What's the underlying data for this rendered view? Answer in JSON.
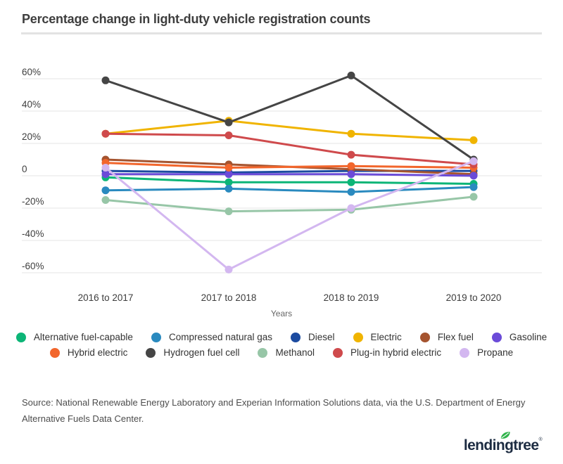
{
  "header": {
    "title": "Percentage change in light-duty vehicle registration counts"
  },
  "chart_data": {
    "type": "line",
    "categories": [
      "2016 to 2017",
      "2017 to 2018",
      "2018 to 2019",
      "2019 to 2020"
    ],
    "xlabel": "Years",
    "ylabel": "",
    "ylim": [
      -65,
      65
    ],
    "grid": true,
    "legend_position": "bottom",
    "yticks": [
      {
        "value": 60,
        "label": "60%"
      },
      {
        "value": 40,
        "label": "40%"
      },
      {
        "value": 20,
        "label": "20%"
      },
      {
        "value": 0,
        "label": "0"
      },
      {
        "value": -20,
        "label": "-20%"
      },
      {
        "value": -40,
        "label": "-40%"
      },
      {
        "value": -60,
        "label": "-60%"
      }
    ],
    "series": [
      {
        "name": "Alternative fuel-capable",
        "color": "#0cb577",
        "values": [
          -1,
          -4,
          -4,
          -5
        ]
      },
      {
        "name": "Compressed natural gas",
        "color": "#2a8abf",
        "values": [
          -9,
          -8,
          -10,
          -7
        ]
      },
      {
        "name": "Diesel",
        "color": "#1c4ba0",
        "values": [
          3,
          2,
          3,
          3
        ]
      },
      {
        "name": "Electric",
        "color": "#f0b400",
        "values": [
          26,
          34,
          26,
          22
        ]
      },
      {
        "name": "Flex fuel",
        "color": "#a5542f",
        "values": [
          10,
          7,
          4,
          1
        ]
      },
      {
        "name": "Gasoline",
        "color": "#6b4bd8",
        "values": [
          1,
          1,
          1,
          0
        ]
      },
      {
        "name": "Hybrid electric",
        "color": "#f2662c",
        "values": [
          8,
          5,
          6,
          5
        ]
      },
      {
        "name": "Hydrogen fuel cell",
        "color": "#454545",
        "values": [
          59,
          33,
          62,
          10
        ]
      },
      {
        "name": "Methanol",
        "color": "#97c6a7",
        "values": [
          -15,
          -22,
          -21,
          -13
        ]
      },
      {
        "name": "Plug-in hybrid electric",
        "color": "#cf4a4c",
        "values": [
          26,
          25,
          13,
          7
        ]
      },
      {
        "name": "Propane",
        "color": "#d3b7f0",
        "values": [
          5,
          -58,
          -20,
          9
        ]
      }
    ]
  },
  "source": {
    "text": "Source: National Renewable Energy Laboratory and Experian Information Solutions data, via the U.S. Department of Energy Alternative Fuels Data Center."
  },
  "logo": {
    "text": "lendingtree",
    "registered": "®",
    "text_color": "#1d2c42",
    "leaf_color": "#2fb34a"
  }
}
